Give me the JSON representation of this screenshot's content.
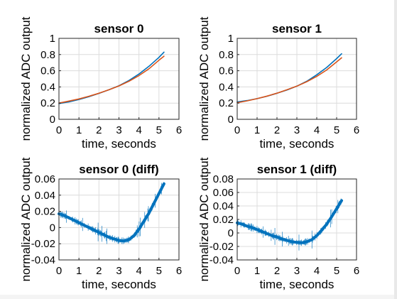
{
  "colors": {
    "background": "#ffffff",
    "measured": "#0072bd",
    "fit": "#d95319",
    "grid": "#dcdcdc",
    "axes": "#262626"
  },
  "chart_data": [
    {
      "type": "line",
      "title": "sensor 0",
      "xlabel": "time, seconds",
      "ylabel": "normalized ADC output",
      "xlim": [
        0,
        6
      ],
      "ylim": [
        0,
        1
      ],
      "xticks": [
        0,
        1,
        2,
        3,
        4,
        5,
        6
      ],
      "yticks": [
        0,
        0.2,
        0.4,
        0.6,
        0.8,
        1
      ],
      "xtick_labels": [
        "0",
        "1",
        "2",
        "3",
        "4",
        "5",
        "6"
      ],
      "ytick_labels": [
        "0",
        "0.2",
        "0.4",
        "0.6",
        "0.8",
        "1"
      ],
      "grid": true,
      "series": [
        {
          "color": "#0072bd",
          "x": [
            0,
            0.5,
            1,
            1.5,
            2,
            2.5,
            3,
            3.5,
            4,
            4.5,
            5,
            5.25
          ],
          "y": [
            0.195,
            0.215,
            0.245,
            0.28,
            0.32,
            0.365,
            0.415,
            0.48,
            0.56,
            0.655,
            0.765,
            0.83
          ]
        },
        {
          "color": "#d95319",
          "x": [
            0,
            0.5,
            1,
            1.5,
            2,
            2.5,
            3,
            3.5,
            4,
            4.5,
            5,
            5.25
          ],
          "y": [
            0.2,
            0.225,
            0.252,
            0.285,
            0.322,
            0.365,
            0.412,
            0.47,
            0.54,
            0.625,
            0.73,
            0.78
          ]
        }
      ]
    },
    {
      "type": "line",
      "title": "sensor 1",
      "xlabel": "time, seconds",
      "ylabel": "normalized ADC output",
      "xlim": [
        0,
        6
      ],
      "ylim": [
        0,
        1
      ],
      "xticks": [
        0,
        1,
        2,
        3,
        4,
        5,
        6
      ],
      "yticks": [
        0,
        0.2,
        0.4,
        0.6,
        0.8,
        1
      ],
      "xtick_labels": [
        "0",
        "1",
        "2",
        "3",
        "4",
        "5",
        "6"
      ],
      "ytick_labels": [
        "0",
        "0.2",
        "0.4",
        "0.6",
        "0.8",
        "1"
      ],
      "grid": true,
      "series": [
        {
          "color": "#0072bd",
          "x": [
            0,
            0.5,
            1,
            1.5,
            2,
            2.5,
            3,
            3.5,
            4,
            4.5,
            5,
            5.25
          ],
          "y": [
            0.215,
            0.232,
            0.255,
            0.285,
            0.322,
            0.362,
            0.41,
            0.47,
            0.55,
            0.64,
            0.75,
            0.81
          ]
        },
        {
          "color": "#d95319",
          "x": [
            0,
            0.5,
            1,
            1.5,
            2,
            2.5,
            3,
            3.5,
            4,
            4.5,
            5,
            5.25
          ],
          "y": [
            0.205,
            0.228,
            0.255,
            0.287,
            0.323,
            0.365,
            0.41,
            0.465,
            0.53,
            0.61,
            0.71,
            0.76
          ]
        }
      ]
    },
    {
      "type": "line",
      "title": "sensor 0 (diff)",
      "xlabel": "time, seconds",
      "ylabel": "normalized ADC output",
      "xlim": [
        0,
        6
      ],
      "ylim": [
        -0.04,
        0.06
      ],
      "xticks": [
        0,
        1,
        2,
        3,
        4,
        5,
        6
      ],
      "yticks": [
        -0.04,
        -0.02,
        0,
        0.02,
        0.04,
        0.06
      ],
      "xtick_labels": [
        "0",
        "1",
        "2",
        "3",
        "4",
        "5",
        "6"
      ],
      "ytick_labels": [
        "-0.04",
        "-0.02",
        "0",
        "0.02",
        "0.04",
        "0.06"
      ],
      "grid": true,
      "series": [
        {
          "color": "#0072bd",
          "x": [
            0,
            0.25,
            0.5,
            0.75,
            1,
            1.25,
            1.5,
            1.75,
            2,
            2.25,
            2.5,
            2.75,
            3,
            3.25,
            3.5,
            3.75,
            4,
            4.25,
            4.5,
            4.75,
            5,
            5.25
          ],
          "y": [
            0.017,
            0.015,
            0.012,
            0.009,
            0.006,
            0.003,
            0.0,
            -0.003,
            -0.006,
            -0.009,
            -0.012,
            -0.014,
            -0.016,
            -0.0165,
            -0.015,
            -0.01,
            -0.002,
            0.008,
            0.018,
            0.03,
            0.042,
            0.054
          ]
        }
      ]
    },
    {
      "type": "line",
      "title": "sensor 1 (diff)",
      "xlabel": "time, seconds",
      "ylabel": "normalized ADC output",
      "xlim": [
        0,
        6
      ],
      "ylim": [
        -0.04,
        0.08
      ],
      "xticks": [
        0,
        1,
        2,
        3,
        4,
        5,
        6
      ],
      "yticks": [
        -0.04,
        -0.02,
        0,
        0.02,
        0.04,
        0.06,
        0.08
      ],
      "xtick_labels": [
        "0",
        "1",
        "2",
        "3",
        "4",
        "5",
        "6"
      ],
      "ytick_labels": [
        "-0.04",
        "-0.02",
        "0",
        "0.02",
        "0.04",
        "0.06",
        "0.08"
      ],
      "grid": true,
      "series": [
        {
          "color": "#0072bd",
          "x": [
            0,
            0.25,
            0.5,
            0.75,
            1,
            1.25,
            1.5,
            1.75,
            2,
            2.25,
            2.5,
            2.75,
            3,
            3.25,
            3.5,
            3.75,
            4,
            4.25,
            4.5,
            4.75,
            5,
            5.25
          ],
          "y": [
            0.015,
            0.013,
            0.01,
            0.008,
            0.005,
            0.002,
            -0.001,
            -0.004,
            -0.006,
            -0.009,
            -0.011,
            -0.013,
            -0.014,
            -0.0145,
            -0.013,
            -0.01,
            -0.004,
            0.004,
            0.013,
            0.024,
            0.036,
            0.048
          ]
        }
      ]
    }
  ]
}
